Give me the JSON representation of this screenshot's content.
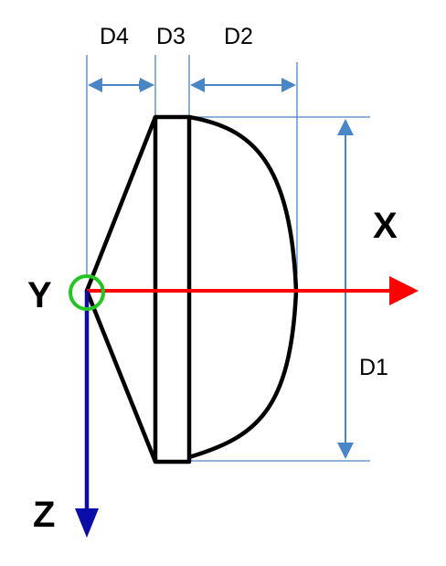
{
  "diagram": {
    "labels": {
      "d4": "D4",
      "d3": "D3",
      "d2": "D2",
      "d1": "D1",
      "x_axis": "X",
      "y_axis": "Y",
      "z_axis": "Z"
    },
    "colors": {
      "outline": "#000000",
      "dimension": "#4a86c5",
      "x_axis": "#ff0000",
      "z_axis": "#0c0ca8",
      "origin": "#22c522"
    }
  }
}
